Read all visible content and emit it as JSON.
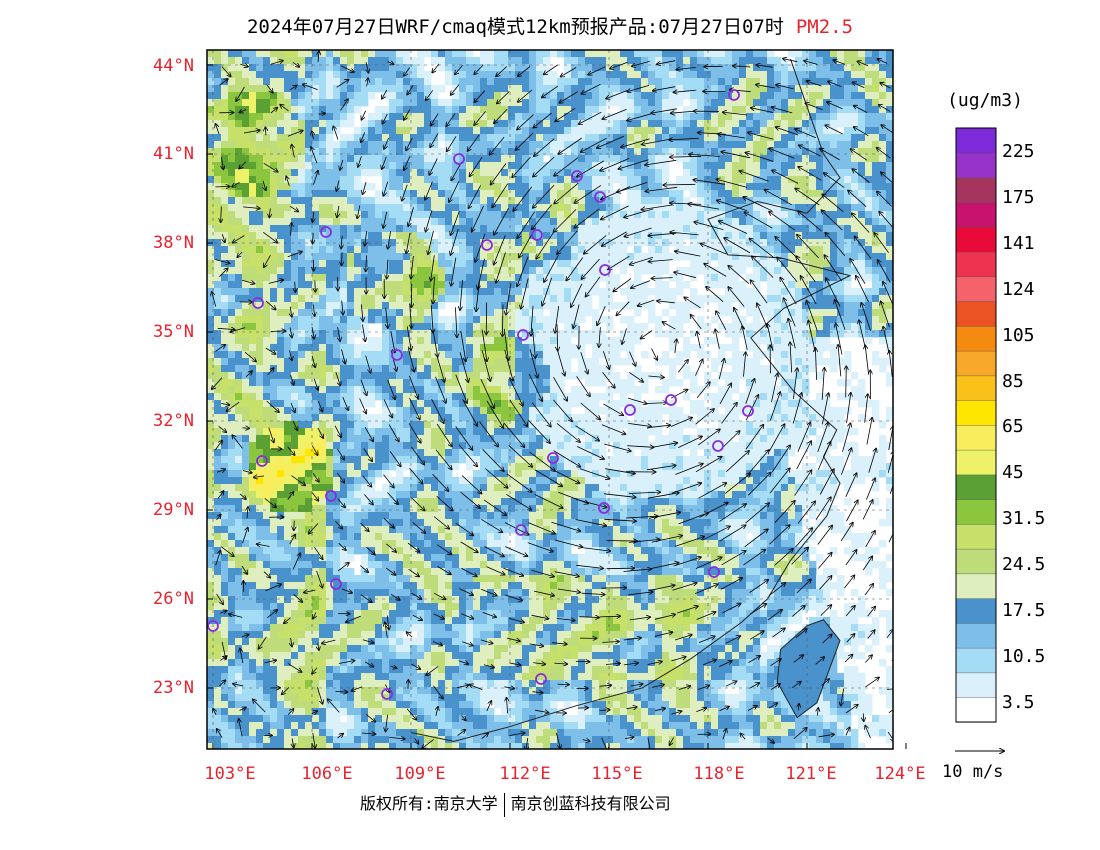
{
  "title": {
    "text": "2024年07月27日WRF/cmaq模式12km预报产品:07月27日07时",
    "pollutant": "PM2.5"
  },
  "map": {
    "type": "pollution-forecast-map",
    "lat_labels": [
      "44°N",
      "41°N",
      "38°N",
      "35°N",
      "32°N",
      "29°N",
      "26°N",
      "23°N"
    ],
    "lon_labels": [
      "103°E",
      "106°E",
      "109°E",
      "112°E",
      "115°E",
      "118°E",
      "121°E",
      "124°E"
    ],
    "typhoon_center": {
      "lon": 116.5,
      "lat": 34.5
    }
  },
  "colorbar": {
    "unit": "(ug/m3)",
    "labels": [
      "225",
      "175",
      "141",
      "124",
      "105",
      "85",
      "65",
      "45",
      "31.5",
      "24.5",
      "17.5",
      "10.5",
      "3.5"
    ],
    "colors": [
      "#ffffff",
      "#daf0fb",
      "#a4dbf5",
      "#7dbfe9",
      "#4a92cc",
      "#dfeebf",
      "#bedd7a",
      "#c6e06a",
      "#8cc63f",
      "#5aa032",
      "#eef268",
      "#f8ed5c",
      "#ffe600",
      "#f9c11a",
      "#f7a72a",
      "#f58a10",
      "#ec5324",
      "#f5636a",
      "#ee334f",
      "#ea0a3a",
      "#c8136e",
      "#a5355e",
      "#9633c8",
      "#7d2ad9"
    ]
  },
  "wind_reference": "10 m/s",
  "credit": {
    "left": "版权所有:南京大学",
    "right": "南京创蓝科技有限公司"
  }
}
